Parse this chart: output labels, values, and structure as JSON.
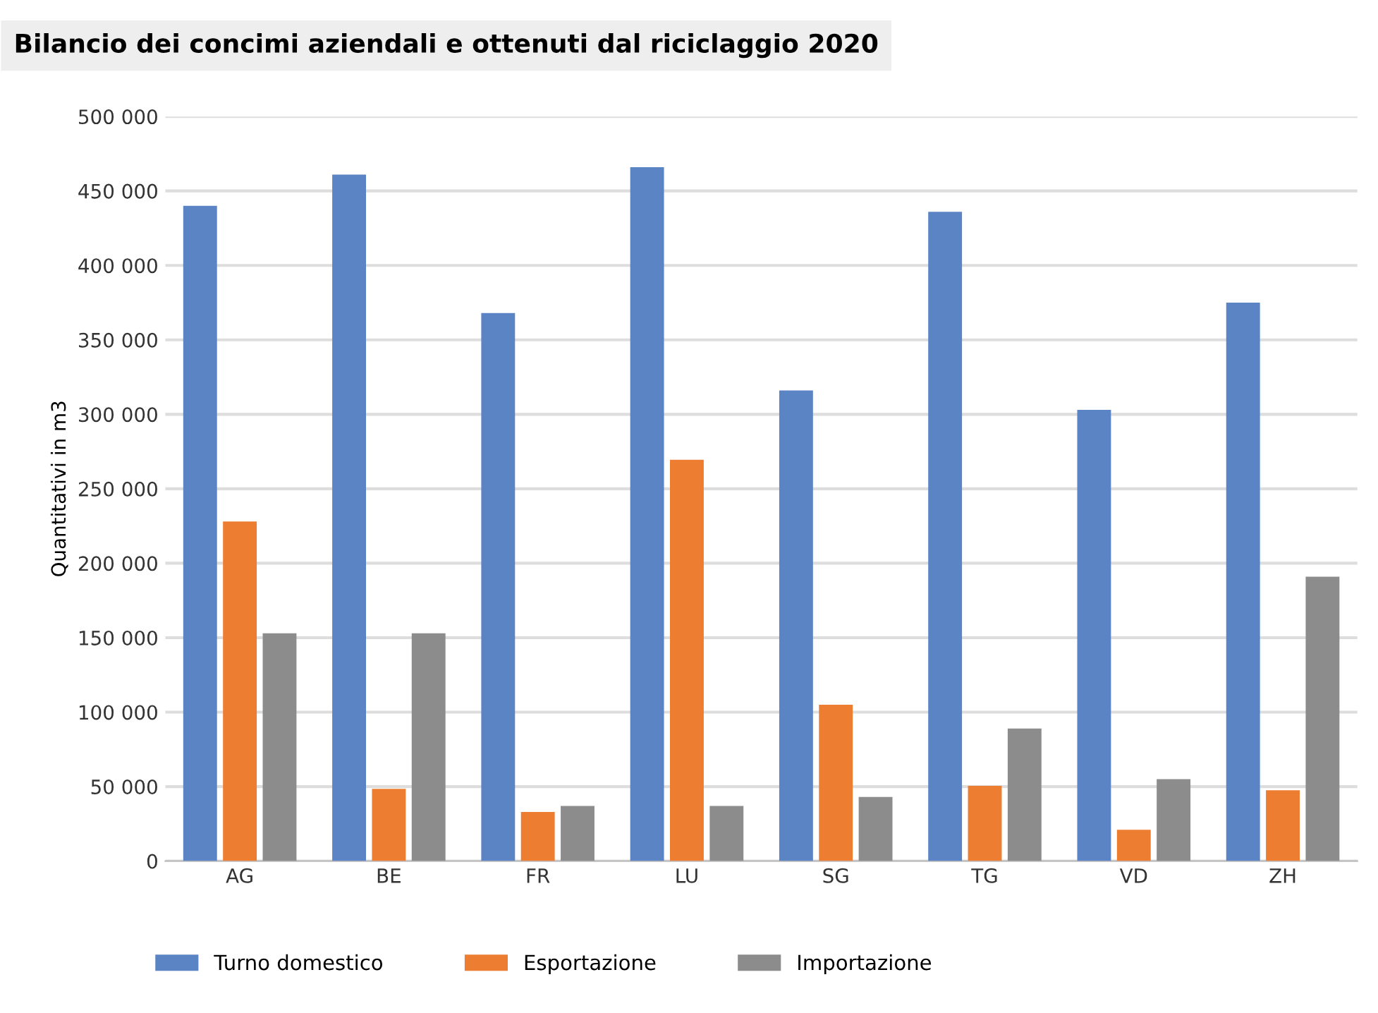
{
  "chart_data": {
    "type": "bar",
    "title": "Bilancio dei concimi aziendali e ottenuti dal riciclaggio 2020",
    "ylabel": "Quantitativi in m3",
    "categories": [
      "AG",
      "BE",
      "FR",
      "LU",
      "SG",
      "TG",
      "VD",
      "ZH"
    ],
    "series": [
      {
        "name": "Turno domestico",
        "color": "#5b84c4",
        "values": [
          440000,
          461000,
          368000,
          466000,
          316000,
          436000,
          303000,
          375000
        ]
      },
      {
        "name": "Esportazione",
        "color": "#ed7d31",
        "values": [
          228000,
          48500,
          33000,
          269500,
          105000,
          50500,
          21000,
          47500
        ]
      },
      {
        "name": "Importazione",
        "color": "#8c8c8c",
        "values": [
          153000,
          153000,
          37000,
          37000,
          43000,
          89000,
          55000,
          191000
        ]
      }
    ],
    "ylim": [
      0,
      500000
    ],
    "yticks": [
      {
        "value": 0,
        "label": "0"
      },
      {
        "value": 50000,
        "label": "50 000"
      },
      {
        "value": 100000,
        "label": "100 000"
      },
      {
        "value": 150000,
        "label": "150 000"
      },
      {
        "value": 200000,
        "label": "200 000"
      },
      {
        "value": 250000,
        "label": "250 000"
      },
      {
        "value": 300000,
        "label": "300 000"
      },
      {
        "value": 350000,
        "label": "350 000"
      },
      {
        "value": 400000,
        "label": "400 000"
      },
      {
        "value": 450000,
        "label": "450 000"
      },
      {
        "value": 500000,
        "label": "500 000"
      }
    ],
    "grid": "y",
    "legend": "bottom"
  }
}
